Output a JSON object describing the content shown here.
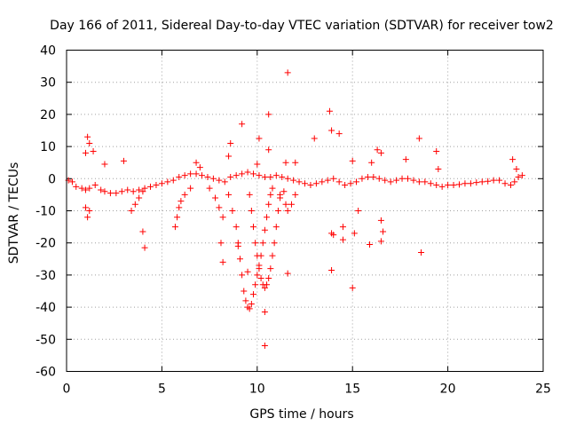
{
  "chart_data": {
    "type": "scatter",
    "title": "Day 166 of 2011, Sidereal Day-to-day VTEC variation (SDTVAR) for receiver tow2",
    "xlabel": "GPS time / hours",
    "ylabel": "SDTVAR / TECUs",
    "xlim": [
      0,
      25
    ],
    "ylim": [
      -60,
      40
    ],
    "xticks": [
      "0",
      "5",
      "10",
      "15",
      "20",
      "25"
    ],
    "yticks": [
      "40",
      "30",
      "20",
      "10",
      "0",
      "-10",
      "-20",
      "-30",
      "-40",
      "-50",
      "-60"
    ],
    "grid": true,
    "marker": "+",
    "color": "#ff0000",
    "series": [
      {
        "name": "tow2",
        "points": [
          [
            0.1,
            -0.5
          ],
          [
            0.3,
            -1.0
          ],
          [
            0.5,
            -2.5
          ],
          [
            0.8,
            -3.0
          ],
          [
            1.0,
            -3.5
          ],
          [
            1.2,
            -3.0
          ],
          [
            1.5,
            -2.0
          ],
          [
            1.8,
            -3.5
          ],
          [
            2.0,
            -4.0
          ],
          [
            2.3,
            -4.5
          ],
          [
            2.6,
            -4.5
          ],
          [
            2.9,
            -4.0
          ],
          [
            3.2,
            -3.5
          ],
          [
            3.5,
            -4.0
          ],
          [
            3.8,
            -3.5
          ],
          [
            4.1,
            -3.0
          ],
          [
            4.4,
            -2.5
          ],
          [
            4.7,
            -2.0
          ],
          [
            5.0,
            -1.5
          ],
          [
            5.3,
            -1.0
          ],
          [
            5.6,
            -0.5
          ],
          [
            5.9,
            0.5
          ],
          [
            6.2,
            1.0
          ],
          [
            6.5,
            1.5
          ],
          [
            6.8,
            1.5
          ],
          [
            7.1,
            1.0
          ],
          [
            7.4,
            0.5
          ],
          [
            7.7,
            0.0
          ],
          [
            8.0,
            -0.5
          ],
          [
            8.3,
            -1.0
          ],
          [
            8.6,
            0.5
          ],
          [
            8.9,
            1.0
          ],
          [
            9.2,
            1.5
          ],
          [
            9.5,
            2.0
          ],
          [
            9.8,
            1.5
          ],
          [
            10.1,
            1.0
          ],
          [
            10.4,
            0.5
          ],
          [
            10.7,
            0.5
          ],
          [
            11.0,
            1.0
          ],
          [
            11.3,
            0.5
          ],
          [
            11.6,
            0.0
          ],
          [
            11.9,
            -0.5
          ],
          [
            12.2,
            -1.0
          ],
          [
            12.5,
            -1.5
          ],
          [
            12.8,
            -2.0
          ],
          [
            13.1,
            -1.5
          ],
          [
            13.4,
            -1.0
          ],
          [
            13.7,
            -0.5
          ],
          [
            14.0,
            0.0
          ],
          [
            14.3,
            -1.0
          ],
          [
            14.6,
            -2.0
          ],
          [
            14.9,
            -1.5
          ],
          [
            15.2,
            -1.0
          ],
          [
            15.5,
            0.0
          ],
          [
            15.8,
            0.5
          ],
          [
            16.1,
            0.5
          ],
          [
            16.4,
            0.0
          ],
          [
            16.7,
            -0.5
          ],
          [
            17.0,
            -1.0
          ],
          [
            17.3,
            -0.5
          ],
          [
            17.6,
            0.0
          ],
          [
            17.9,
            0.0
          ],
          [
            18.2,
            -0.5
          ],
          [
            18.5,
            -1.0
          ],
          [
            18.8,
            -1.0
          ],
          [
            19.1,
            -1.5
          ],
          [
            19.4,
            -2.0
          ],
          [
            19.7,
            -2.5
          ],
          [
            20.0,
            -2.0
          ],
          [
            20.3,
            -2.0
          ],
          [
            20.6,
            -1.8
          ],
          [
            20.9,
            -1.5
          ],
          [
            21.2,
            -1.5
          ],
          [
            21.5,
            -1.2
          ],
          [
            21.8,
            -1.0
          ],
          [
            22.1,
            -0.8
          ],
          [
            22.4,
            -0.5
          ],
          [
            22.7,
            -0.5
          ],
          [
            23.0,
            -1.5
          ],
          [
            23.3,
            -2.0
          ],
          [
            23.5,
            -1.0
          ],
          [
            23.7,
            0.5
          ],
          [
            23.9,
            1.0
          ],
          [
            5.7,
            -15.0
          ],
          [
            5.8,
            -12.0
          ],
          [
            5.9,
            -9.0
          ],
          [
            6.0,
            -7.0
          ],
          [
            6.2,
            -5.0
          ],
          [
            6.5,
            -3.0
          ],
          [
            3.4,
            -10.0
          ],
          [
            3.6,
            -8.0
          ],
          [
            3.8,
            -6.0
          ],
          [
            4.0,
            -4.0
          ],
          [
            7.5,
            -3.0
          ],
          [
            7.8,
            -6.0
          ],
          [
            8.0,
            -9.0
          ],
          [
            8.2,
            -12.0
          ],
          [
            8.5,
            -5.0
          ],
          [
            8.7,
            -10.0
          ],
          [
            8.9,
            -15.0
          ],
          [
            9.0,
            -20.0
          ],
          [
            9.1,
            -25.0
          ],
          [
            9.2,
            -30.0
          ],
          [
            9.3,
            -35.0
          ],
          [
            9.4,
            -38.0
          ],
          [
            9.5,
            -40.0
          ],
          [
            9.6,
            -40.5
          ],
          [
            9.7,
            -39.0
          ],
          [
            9.8,
            -36.0
          ],
          [
            9.9,
            -33.0
          ],
          [
            10.0,
            -30.0
          ],
          [
            10.1,
            -27.0
          ],
          [
            10.2,
            -24.0
          ],
          [
            10.3,
            -20.0
          ],
          [
            10.4,
            -16.0
          ],
          [
            10.5,
            -12.0
          ],
          [
            10.6,
            -8.0
          ],
          [
            10.7,
            -5.0
          ],
          [
            10.8,
            -3.0
          ],
          [
            9.6,
            -5.0
          ],
          [
            9.7,
            -10.0
          ],
          [
            9.8,
            -15.0
          ],
          [
            9.9,
            -20.0
          ],
          [
            10.0,
            -24.0
          ],
          [
            10.1,
            -28.0
          ],
          [
            10.2,
            -31.0
          ],
          [
            10.3,
            -33.0
          ],
          [
            10.4,
            -34.0
          ],
          [
            10.5,
            -33.0
          ],
          [
            10.6,
            -31.0
          ],
          [
            10.7,
            -28.0
          ],
          [
            10.8,
            -24.0
          ],
          [
            10.9,
            -20.0
          ],
          [
            11.0,
            -15.0
          ],
          [
            11.1,
            -10.0
          ],
          [
            11.2,
            -6.0
          ],
          [
            11.4,
            -4.0
          ],
          [
            11.5,
            -8.0
          ],
          [
            11.6,
            -10.0
          ],
          [
            11.8,
            -8.0
          ],
          [
            12.0,
            -5.0
          ],
          [
            1.1,
            13.0
          ],
          [
            1.2,
            11.0
          ],
          [
            1.0,
            8.0
          ],
          [
            1.4,
            8.5
          ],
          [
            1.1,
            -12.0
          ],
          [
            1.2,
            -10.0
          ],
          [
            1.0,
            -9.0
          ],
          [
            2.0,
            4.5
          ],
          [
            3.0,
            5.5
          ],
          [
            4.0,
            -16.5
          ],
          [
            4.1,
            -21.5
          ],
          [
            6.8,
            5.0
          ],
          [
            7.0,
            3.5
          ],
          [
            8.1,
            -20.0
          ],
          [
            8.2,
            -26.0
          ],
          [
            8.5,
            7.0
          ],
          [
            8.6,
            11.0
          ],
          [
            9.0,
            -21.0
          ],
          [
            9.5,
            -29.0
          ],
          [
            10.1,
            12.5
          ],
          [
            10.0,
            4.5
          ],
          [
            9.2,
            17.0
          ],
          [
            10.6,
            20.0
          ],
          [
            10.6,
            9.0
          ],
          [
            11.6,
            33.0
          ],
          [
            11.5,
            5.0
          ],
          [
            11.6,
            -29.5
          ],
          [
            10.4,
            -41.5
          ],
          [
            10.4,
            -52.0
          ],
          [
            11.2,
            -5.0
          ],
          [
            12.0,
            5.0
          ],
          [
            13.0,
            12.5
          ],
          [
            13.8,
            21.0
          ],
          [
            13.9,
            15.0
          ],
          [
            13.9,
            -17.0
          ],
          [
            14.0,
            -17.5
          ],
          [
            13.9,
            -28.5
          ],
          [
            14.3,
            14.0
          ],
          [
            14.5,
            -19.0
          ],
          [
            14.5,
            -15.0
          ],
          [
            15.0,
            -34.0
          ],
          [
            15.0,
            5.5
          ],
          [
            15.1,
            -17.0
          ],
          [
            15.3,
            -10.0
          ],
          [
            15.9,
            -20.5
          ],
          [
            16.0,
            5.0
          ],
          [
            16.5,
            -19.5
          ],
          [
            16.6,
            -16.5
          ],
          [
            16.5,
            -13.0
          ],
          [
            16.3,
            9.0
          ],
          [
            16.5,
            8.0
          ],
          [
            17.8,
            6.0
          ],
          [
            18.5,
            12.5
          ],
          [
            18.6,
            -23.0
          ],
          [
            19.4,
            8.5
          ],
          [
            19.5,
            3.0
          ],
          [
            23.4,
            6.0
          ],
          [
            23.6,
            3.0
          ]
        ]
      }
    ]
  }
}
